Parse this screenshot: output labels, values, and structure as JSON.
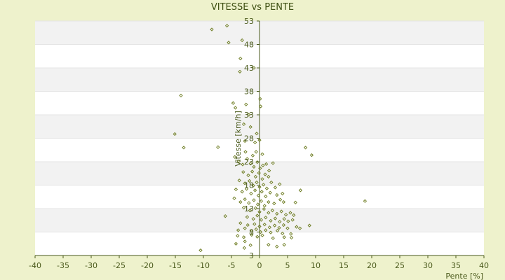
{
  "chart_data": {
    "type": "scatter",
    "title": "VITESSE vs PENTE",
    "xlabel": "Pente [%]",
    "ylabel": "Vitesse [km/h]",
    "xlim": [
      -40,
      40
    ],
    "ylim": [
      3,
      53
    ],
    "xticks": [
      -40,
      -35,
      -30,
      -25,
      -20,
      -15,
      -10,
      -5,
      0,
      5,
      10,
      15,
      20,
      25,
      30,
      35,
      40
    ],
    "yticks": [
      3,
      8,
      13,
      18,
      23,
      28,
      33,
      38,
      43,
      48,
      53
    ],
    "grid": "alternating horizontal bands",
    "legend": "none",
    "colors": {
      "background": "#eef2cc",
      "plot": "#ffffff",
      "band": "#f2f2f2",
      "marker": "#6b7a1e",
      "axis": "#4a5a1c",
      "text": "#3d4f12"
    },
    "series": [
      {
        "points": [
          [
            -8.5,
            51.2
          ],
          [
            -5.8,
            52.0
          ],
          [
            -5.5,
            48.4
          ],
          [
            -3.1,
            48.9
          ],
          [
            -3.4,
            45.0
          ],
          [
            -3.5,
            42.2
          ],
          [
            -1.0,
            43.0
          ],
          [
            -14.0,
            37.1
          ],
          [
            -4.7,
            35.5
          ],
          [
            -2.4,
            35.2
          ],
          [
            -4.3,
            34.5
          ],
          [
            -1.9,
            33.0
          ],
          [
            0.1,
            36.4
          ],
          [
            0.2,
            34.8
          ],
          [
            -2.8,
            31.0
          ],
          [
            -1.6,
            30.4
          ],
          [
            -0.5,
            29.0
          ],
          [
            -15.1,
            28.9
          ],
          [
            -13.5,
            26.0
          ],
          [
            -7.4,
            26.1
          ],
          [
            -2.6,
            27.4
          ],
          [
            -0.8,
            27.1
          ],
          [
            0.0,
            27.6
          ],
          [
            0.5,
            24.6
          ],
          [
            -4.4,
            24.0
          ],
          [
            -2.5,
            25.1
          ],
          [
            -1.2,
            24.3
          ],
          [
            -0.6,
            25.1
          ],
          [
            8.2,
            26.0
          ],
          [
            9.3,
            24.4
          ],
          [
            -3.7,
            23.1
          ],
          [
            -3.0,
            22.4
          ],
          [
            -2.2,
            23.6
          ],
          [
            -1.6,
            22.6
          ],
          [
            -1.0,
            21.9
          ],
          [
            -0.4,
            22.9
          ],
          [
            0.1,
            21.6
          ],
          [
            0.6,
            22.2
          ],
          [
            1.2,
            22.5
          ],
          [
            1.7,
            21.1
          ],
          [
            2.4,
            22.7
          ],
          [
            -2.9,
            20.8
          ],
          [
            -2.0,
            20.1
          ],
          [
            -1.3,
            20.9
          ],
          [
            -0.7,
            19.8
          ],
          [
            -0.1,
            20.6
          ],
          [
            0.5,
            19.3
          ],
          [
            1.0,
            20.3
          ],
          [
            1.6,
            19.8
          ],
          [
            -3.6,
            19.0
          ],
          [
            -2.6,
            18.4
          ],
          [
            -1.8,
            18.9
          ],
          [
            -1.1,
            17.9
          ],
          [
            -0.5,
            18.6
          ],
          [
            0.0,
            17.6
          ],
          [
            0.7,
            18.1
          ],
          [
            1.3,
            17.3
          ],
          [
            2.1,
            18.6
          ],
          [
            2.8,
            17.5
          ],
          [
            3.6,
            18.2
          ],
          [
            -4.2,
            17.1
          ],
          [
            -3.1,
            16.6
          ],
          [
            -2.3,
            17.2
          ],
          [
            -1.5,
            16.2
          ],
          [
            -0.8,
            16.9
          ],
          [
            -0.2,
            15.8
          ],
          [
            0.4,
            16.6
          ],
          [
            1.1,
            15.6
          ],
          [
            1.9,
            16.4
          ],
          [
            3.1,
            15.9
          ],
          [
            4.1,
            16.2
          ],
          [
            7.3,
            16.9
          ],
          [
            -4.5,
            15.2
          ],
          [
            -3.4,
            14.4
          ],
          [
            -2.6,
            15.0
          ],
          [
            -1.9,
            14.2
          ],
          [
            -1.0,
            14.8
          ],
          [
            -0.3,
            13.9
          ],
          [
            0.3,
            14.6
          ],
          [
            0.9,
            13.6
          ],
          [
            1.6,
            14.4
          ],
          [
            2.6,
            14.1
          ],
          [
            3.7,
            14.9
          ],
          [
            4.3,
            14.4
          ],
          [
            6.4,
            14.3
          ],
          [
            18.8,
            14.6
          ],
          [
            -2.8,
            13.2
          ],
          [
            -1.7,
            12.6
          ],
          [
            -0.7,
            13.1
          ],
          [
            0.0,
            12.3
          ],
          [
            0.8,
            12.9
          ],
          [
            1.6,
            12.1
          ],
          [
            2.3,
            12.6
          ],
          [
            3.1,
            11.9
          ],
          [
            3.9,
            12.4
          ],
          [
            4.7,
            11.7
          ],
          [
            5.5,
            12.1
          ],
          [
            6.1,
            11.6
          ],
          [
            -6.1,
            11.4
          ],
          [
            -2.2,
            11.2
          ],
          [
            -1.1,
            10.8
          ],
          [
            -0.4,
            11.5
          ],
          [
            0.3,
            10.6
          ],
          [
            1.1,
            11.1
          ],
          [
            2.0,
            10.4
          ],
          [
            2.8,
            10.9
          ],
          [
            3.6,
            10.2
          ],
          [
            4.4,
            10.8
          ],
          [
            5.1,
            10.3
          ],
          [
            5.9,
            10.6
          ],
          [
            -3.4,
            9.9
          ],
          [
            -2.1,
            9.5
          ],
          [
            -0.9,
            9.7
          ],
          [
            0.0,
            9.2
          ],
          [
            0.9,
            9.6
          ],
          [
            1.8,
            9.0
          ],
          [
            2.7,
            9.4
          ],
          [
            3.5,
            8.9
          ],
          [
            4.3,
            9.5
          ],
          [
            5.0,
            8.8
          ],
          [
            6.6,
            9.1
          ],
          [
            7.2,
            8.8
          ],
          [
            8.9,
            9.4
          ],
          [
            -3.8,
            8.4
          ],
          [
            -2.6,
            8.8
          ],
          [
            -1.4,
            8.2
          ],
          [
            -0.6,
            8.6
          ],
          [
            0.2,
            8.0
          ],
          [
            1.1,
            8.4
          ],
          [
            2.0,
            7.9
          ],
          [
            3.2,
            8.3
          ],
          [
            4.1,
            7.7
          ],
          [
            5.6,
            7.6
          ],
          [
            -3.9,
            7.2
          ],
          [
            -2.8,
            6.9
          ],
          [
            -1.4,
            7.4
          ],
          [
            -0.4,
            7.0
          ],
          [
            0.5,
            7.3
          ],
          [
            2.4,
            6.7
          ],
          [
            4.4,
            6.9
          ],
          [
            5.7,
            6.8
          ],
          [
            -4.2,
            5.5
          ],
          [
            -2.6,
            6.0
          ],
          [
            -1.6,
            5.2
          ],
          [
            1.6,
            5.3
          ],
          [
            3.1,
            4.9
          ],
          [
            4.4,
            5.3
          ],
          [
            -2.7,
            4.6
          ],
          [
            -10.5,
            4.1
          ]
        ]
      }
    ]
  }
}
